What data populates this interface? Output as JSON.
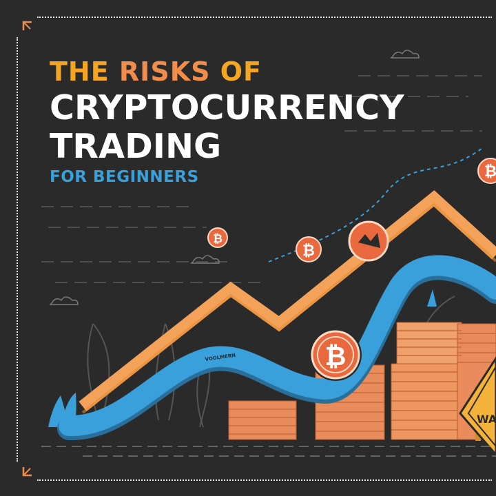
{
  "title": {
    "line1_words": [
      "THE",
      "RISKS",
      "OF"
    ],
    "line2": "CRYPTOCURRENCY",
    "line3": "TRADING",
    "subtitle": "FOR BEGINNERS"
  },
  "illustration": {
    "coin_symbol": "₿",
    "wave_label": "VOOLMERN",
    "warning_sign_text": "WA"
  },
  "colors": {
    "background": "#2a2a2b",
    "accent_orange": "#f4a25a",
    "accent_yellow": "#f4a623",
    "accent_blue": "#3aa0dc",
    "coin_copper": "#e07a4a",
    "frame": "#e9e9e9"
  },
  "icons": [
    "bitcoin-coin-icon",
    "warning-sign-icon",
    "corner-arrow-icon",
    "plant-icon",
    "cloud-icon"
  ]
}
